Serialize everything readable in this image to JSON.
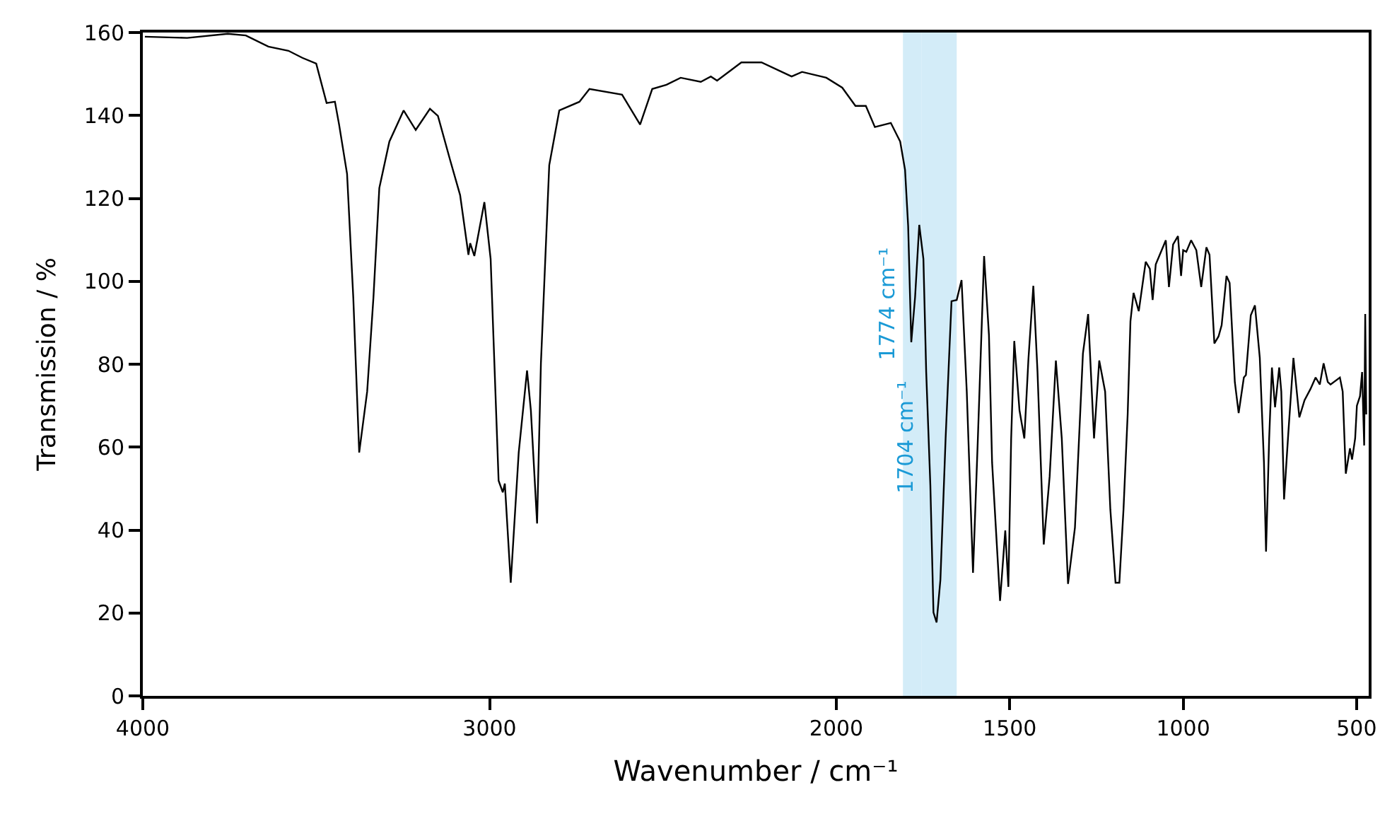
{
  "chart_data": {
    "type": "line",
    "xlabel": "Wavenumber / cm⁻¹",
    "ylabel": "Transmission / %",
    "xlim": [
      4000,
      465
    ],
    "xticks": [
      4000,
      3000,
      2000,
      1500,
      1000,
      500
    ],
    "ylim": [
      0,
      160
    ],
    "yticks": [
      0,
      20,
      40,
      60,
      80,
      100,
      120,
      140,
      160
    ],
    "grid": false,
    "marker": "none",
    "line_style": "solid",
    "bands": [
      {
        "axis": "x",
        "from": 1808,
        "to": 1755,
        "label": "1774 cm⁻¹",
        "color": "#d3ecf8"
      },
      {
        "axis": "x",
        "from": 1755,
        "to": 1653,
        "label": "1704 cm⁻¹",
        "color": "#d3ecf8"
      }
    ],
    "series": [
      {
        "color": "#000000",
        "x": [
          3994,
          3872,
          3755,
          3703,
          3638,
          3580,
          3540,
          3500,
          3470,
          3446,
          3434,
          3411,
          3393,
          3376,
          3353,
          3335,
          3318,
          3289,
          3248,
          3213,
          3172,
          3149,
          3114,
          3085,
          3061,
          3056,
          3044,
          3015,
          2997,
          2974,
          2962,
          2956,
          2939,
          2916,
          2892,
          2881,
          2863,
          2852,
          2828,
          2799,
          2741,
          2712,
          2618,
          2566,
          2531,
          2490,
          2449,
          2391,
          2362,
          2344,
          2274,
          2216,
          2129,
          2099,
          2029,
          1983,
          1945,
          1915,
          1889,
          1843,
          1816,
          1802,
          1793,
          1784,
          1773,
          1761,
          1749,
          1741,
          1729,
          1720,
          1711,
          1700,
          1685,
          1668,
          1653,
          1639,
          1624,
          1606,
          1592,
          1574,
          1560,
          1551,
          1528,
          1513,
          1504,
          1496,
          1487,
          1472,
          1458,
          1446,
          1432,
          1420,
          1402,
          1385,
          1367,
          1350,
          1332,
          1312,
          1289,
          1274,
          1257,
          1242,
          1225,
          1210,
          1195,
          1184,
          1172,
          1160,
          1152,
          1143,
          1128,
          1108,
          1096,
          1088,
          1079,
          1050,
          1041,
          1029,
          1015,
          1006,
          1000,
          991,
          977,
          962,
          948,
          933,
          924,
          910,
          898,
          889,
          875,
          866,
          851,
          840,
          825,
          819,
          805,
          793,
          779,
          767,
          761,
          752,
          744,
          735,
          723,
          717,
          709,
          697,
          682,
          665,
          650,
          633,
          618,
          606,
          595,
          583,
          575,
          548,
          540,
          531,
          519,
          513,
          504,
          499,
          490,
          484,
          478,
          475,
          472
        ],
        "values": [
          159,
          158.7,
          159.7,
          159.3,
          156.6,
          155.6,
          153.9,
          152.5,
          143,
          143.3,
          137.8,
          125.9,
          96,
          58.7,
          73.4,
          96,
          122.5,
          133.7,
          141.2,
          136.5,
          141.6,
          139.9,
          129.3,
          120.8,
          106.4,
          109.2,
          106.1,
          119.1,
          105.4,
          51.9,
          49.1,
          51.2,
          27.3,
          58.7,
          78.5,
          68.9,
          41.6,
          80.2,
          128,
          141.2,
          143.3,
          146.4,
          145,
          137.8,
          146.4,
          147.4,
          149.1,
          148.1,
          149.4,
          148.4,
          152.8,
          152.8,
          149.4,
          150.5,
          149.1,
          146.7,
          142.3,
          142.3,
          137.2,
          138.2,
          133.7,
          126.9,
          113.3,
          85.3,
          96.2,
          113.6,
          105.4,
          78.1,
          50.8,
          20.1,
          17.7,
          28,
          62.1,
          95.2,
          95.5,
          100.3,
          73.4,
          29.7,
          62.1,
          106.1,
          87,
          56.3,
          22.9,
          39.9,
          26.3,
          62.1,
          85.6,
          68.9,
          62.1,
          81.5,
          98.9,
          78.1,
          36.5,
          52.9,
          80.9,
          62.1,
          27,
          40.6,
          82.6,
          92.1,
          62.1,
          80.9,
          73.4,
          45,
          27.3,
          27.3,
          45,
          67.9,
          90.4,
          97.2,
          92.8,
          104.7,
          103,
          95.5,
          104.1,
          109.9,
          98.6,
          108.9,
          110.9,
          101.3,
          107.5,
          107.1,
          109.9,
          107.5,
          98.6,
          108.2,
          106.4,
          85,
          86.7,
          89.4,
          101.3,
          99.6,
          75.7,
          68.2,
          76.8,
          77.4,
          91.8,
          94.2,
          81.5,
          56.3,
          34.8,
          62.1,
          79.2,
          69.6,
          79.2,
          73.4,
          47.4,
          63.1,
          81.5,
          67.2,
          71.3,
          74,
          76.8,
          75.1,
          80.2,
          75.7,
          75.1,
          76.8,
          73.4,
          53.6,
          59.7,
          57,
          62.1,
          70,
          72.3,
          78.1,
          60.4,
          92.1,
          67.9
        ]
      }
    ]
  }
}
